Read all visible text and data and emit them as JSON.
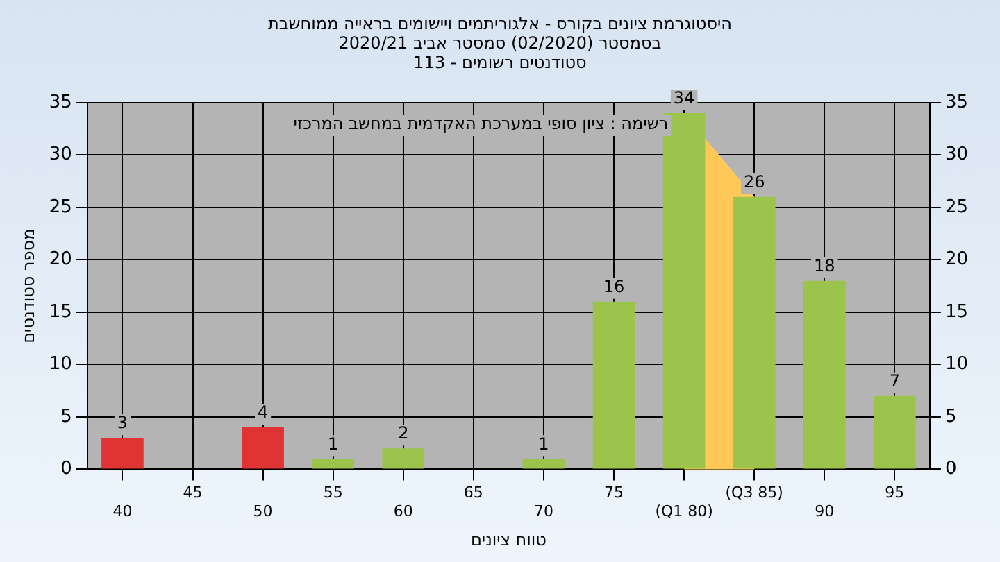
{
  "chart_data": {
    "type": "bar",
    "title": "היסטוגרמת ציונים בקורס - אלגוריתמים ויישומים בראייה ממוחשבת",
    "subtitle": "בסמסטר (02/2020) סמסטר אביב 2020/21\nסטודנטים רשומים - 113",
    "xlabel": "טווח ציונים",
    "ylabel": "מספר סטודנטים",
    "annotations": [
      "רשימה : ציון סופי במערכת האקדמית במחשב המרכזי"
    ],
    "categories": [
      "40",
      "45",
      "50",
      "55",
      "60",
      "65",
      "70",
      "75",
      "(Q1 80)",
      "(Q3 85)",
      "90",
      "95"
    ],
    "values": [
      3,
      0,
      4,
      1,
      2,
      0,
      1,
      16,
      34,
      26,
      18,
      7
    ],
    "colors": [
      "#e03434",
      "#e03434",
      "#e03434",
      "#9cc44c",
      "#9cc44c",
      "#9cc44c",
      "#9cc44c",
      "#9cc44c",
      "#9cc44c",
      "#9cc44c",
      "#9cc44c",
      "#9cc44c"
    ],
    "value_labels": [
      "3",
      null,
      "4",
      "1",
      "2",
      null,
      "1",
      "16",
      "34",
      "26",
      "18",
      "7"
    ],
    "ylim": [
      0,
      35
    ],
    "yticks": [
      0,
      5,
      10,
      15,
      20,
      25,
      30,
      35
    ],
    "y2lim": [
      0,
      35
    ],
    "y2ticks": [
      0,
      5,
      10,
      15,
      20,
      25,
      30,
      35
    ],
    "bands": [
      {
        "axis": "x",
        "from": "(Q1 80)",
        "to": "(Q3 85)",
        "color": "#ffc857"
      }
    ],
    "grid": true,
    "legend": false
  }
}
